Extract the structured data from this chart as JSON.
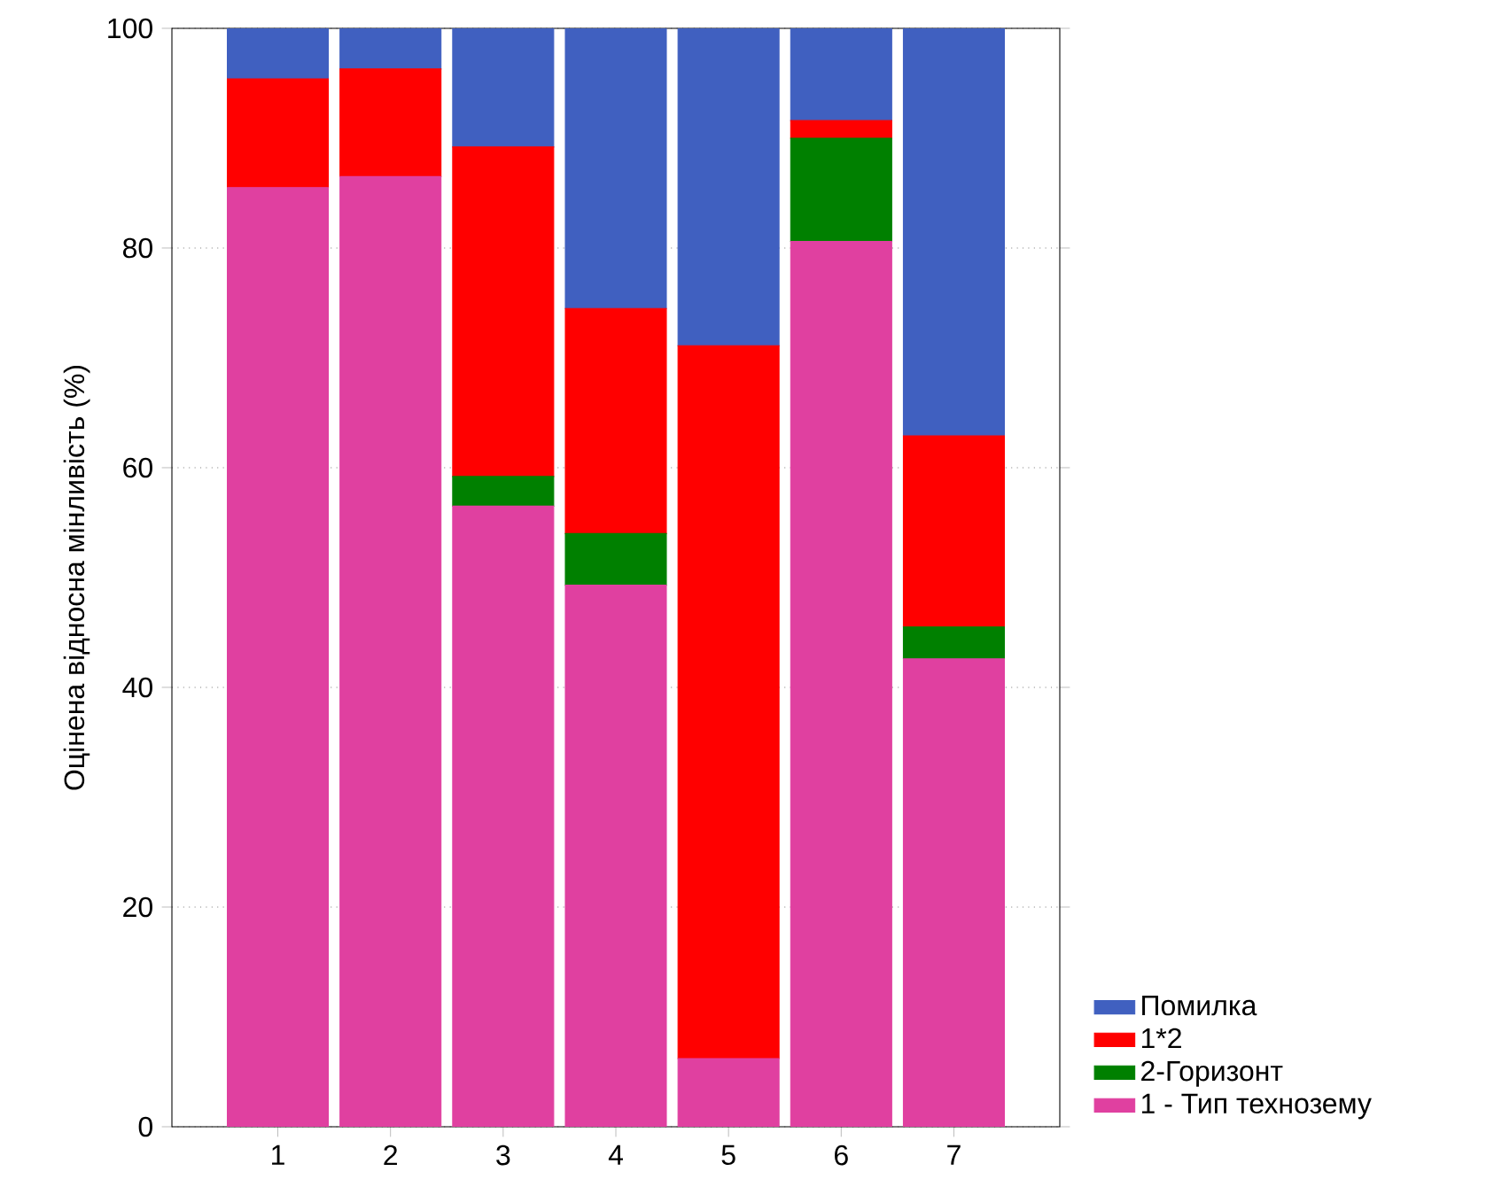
{
  "chart_data": {
    "type": "bar",
    "stacked": true,
    "ylabel": "Оцінена відносна мінливість (%)",
    "categories": [
      "1",
      "2",
      "3",
      "4",
      "5",
      "6",
      "7"
    ],
    "series": [
      {
        "name": "1 - Тип технозему",
        "color": "#e040a0",
        "values": [
          85.5,
          86.5,
          56.5,
          49.3,
          6.2,
          80.6,
          42.6
        ]
      },
      {
        "name": "2-Горизонт",
        "color": "#008000",
        "values": [
          0,
          0,
          2.7,
          4.7,
          0,
          9.4,
          2.9
        ]
      },
      {
        "name": "1*2",
        "color": "#ff0000",
        "values": [
          9.9,
          9.8,
          30.0,
          20.5,
          64.9,
          1.6,
          17.4
        ]
      },
      {
        "name": "Помилка",
        "color": "#4060c0",
        "values": [
          4.6,
          3.7,
          10.8,
          25.5,
          28.9,
          8.4,
          37.1
        ]
      }
    ],
    "ylim": [
      0,
      100
    ],
    "yticks": [
      0,
      20,
      40,
      60,
      80,
      100
    ],
    "grid": "y",
    "legend": "bottom right"
  }
}
